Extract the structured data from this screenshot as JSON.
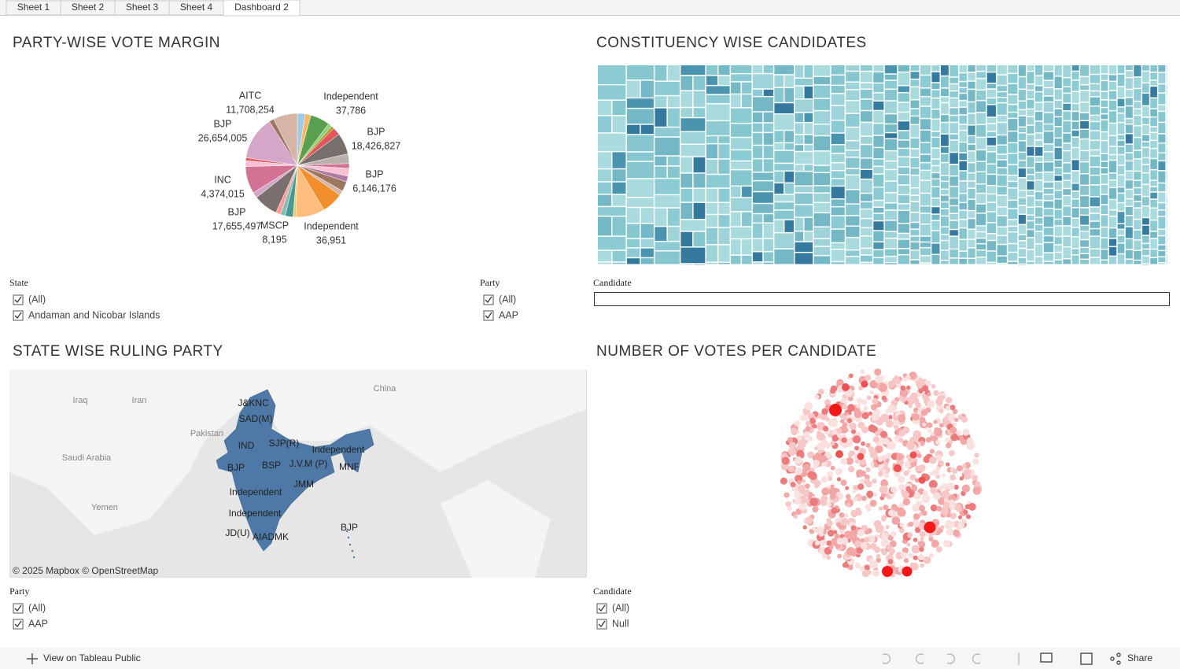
{
  "tabs": [
    "Sheet 1",
    "Sheet 2",
    "Sheet 3",
    "Sheet 4",
    "Dashboard 2"
  ],
  "pie": {
    "title": "PARTY-WISE VOTE MARGIN",
    "labels": [
      {
        "party": "AITC",
        "value": "11,708,254"
      },
      {
        "party": "BJP",
        "value": "26,654,005"
      },
      {
        "party": "Independent",
        "value": "37,786"
      },
      {
        "party": "BJP",
        "value": "18,426,827"
      },
      {
        "party": "BJP",
        "value": "6,146,176"
      },
      {
        "party": "INC",
        "value": "4,374,015"
      },
      {
        "party": "BJP",
        "value": "17,655,497"
      },
      {
        "party": "MSCP",
        "value": "8,195"
      },
      {
        "party": "Independent",
        "value": "36,951"
      }
    ]
  },
  "treemap": {
    "title": "CONSTITUENCY WISE CANDIDATES"
  },
  "map": {
    "title": "STATE WISE RULING PARTY",
    "places": [
      "China",
      "Iraq",
      "Iran",
      "Pakistan",
      "Saudi Arabia",
      "Yemen"
    ],
    "parties": [
      "J&KNC",
      "SAD(M)",
      "IND",
      "SJP(R)",
      "Independent",
      "BJP",
      "BSP",
      "J.V.M (P)",
      "MNF",
      "JMM",
      "Independent",
      "Independent",
      "JD(U)",
      "AIADMK",
      "BJP"
    ],
    "credit": "© 2025 Mapbox © OpenStreetMap"
  },
  "bubbles": {
    "title": "NUMBER OF VOTES PER CANDIDATE"
  },
  "filters": {
    "state": {
      "label": "State",
      "items": [
        "(All)",
        "Andaman and Nicobar Islands"
      ]
    },
    "party_top": {
      "label": "Party",
      "items": [
        "(All)",
        "AAP"
      ]
    },
    "candidate_top": {
      "label": "Candidate"
    },
    "party_bottom": {
      "label": "Party",
      "items": [
        "(All)",
        "AAP"
      ]
    },
    "candidate_bottom": {
      "label": "Candidate",
      "items": [
        "(All)",
        "Null"
      ]
    }
  },
  "footer": {
    "link": "View on Tableau Public",
    "share": "Share"
  }
}
